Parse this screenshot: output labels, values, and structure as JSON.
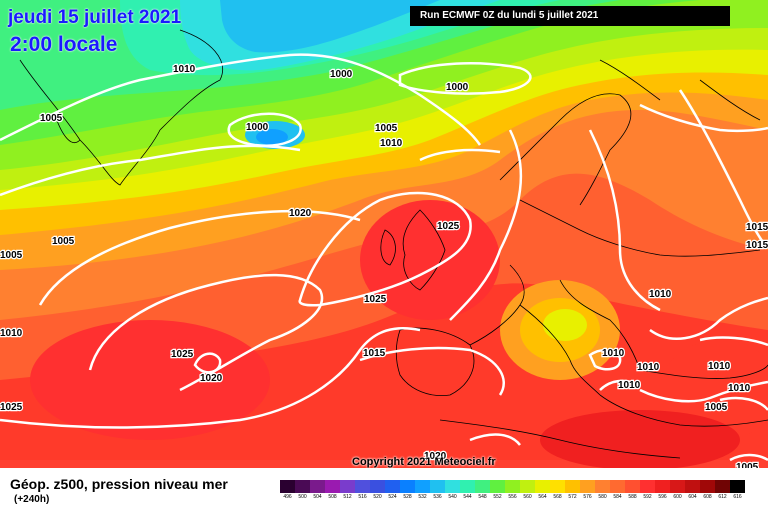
{
  "header": {
    "date_line": "jeudi 15 juillet 2021",
    "time_line": "2:00 locale",
    "run_info": "Run ECMWF 0Z du lundi 5 juillet 2021"
  },
  "copyright": "Copyright 2021 Meteociel.fr",
  "footer": {
    "title": "Géop. z500, pression niveau mer",
    "subtitle": "(+240h)"
  },
  "isobar_labels": [
    "1010",
    "1000",
    "1000",
    "1005",
    "1010",
    "1005",
    "1000",
    "1020",
    "1005",
    "1025",
    "1025",
    "1005",
    "1010",
    "1025",
    "1020",
    "1015",
    "1010",
    "1010",
    "1010",
    "1010",
    "1010",
    "1005",
    "1015",
    "1015",
    "1020",
    "1025",
    "1010",
    "1005"
  ],
  "color_scale": {
    "ticks": [
      "496",
      "500",
      "504",
      "508",
      "512",
      "516",
      "520",
      "524",
      "528",
      "532",
      "536",
      "540",
      "544",
      "548",
      "552",
      "556",
      "560",
      "564",
      "568",
      "572",
      "576",
      "580",
      "584",
      "588",
      "592",
      "596",
      "600",
      "604",
      "608",
      "612",
      "616"
    ],
    "colors": [
      "#2a0030",
      "#4a0a55",
      "#7a1a8c",
      "#9a1ab0",
      "#7a3ccc",
      "#5050dd",
      "#3a50e0",
      "#2060f0",
      "#0a80ff",
      "#10a0ff",
      "#20c0f0",
      "#30e0e0",
      "#30f0b0",
      "#40f080",
      "#60f040",
      "#90f020",
      "#c0f010",
      "#e8f000",
      "#ffe000",
      "#ffc000",
      "#ffa020",
      "#ff8030",
      "#ff6a30",
      "#ff5030",
      "#ff3030",
      "#f02020",
      "#d81818",
      "#c01010",
      "#a00808",
      "#700404",
      "#000000"
    ]
  },
  "colors": {
    "title_text": "#1a1aff",
    "isobar": "#ffffff",
    "coastline": "#000000"
  }
}
